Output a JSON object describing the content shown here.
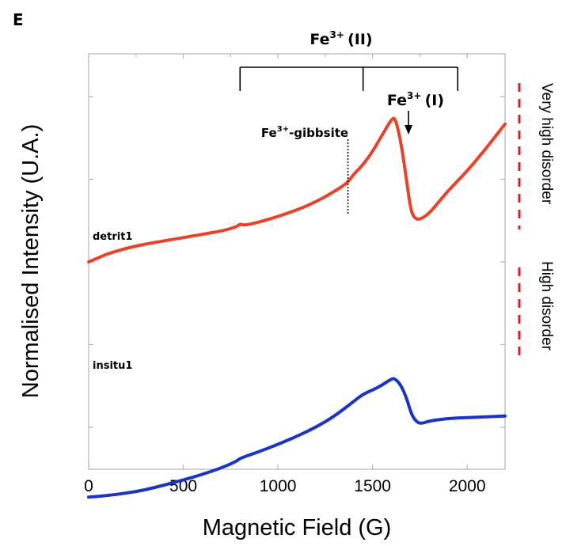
{
  "panel_label": "E",
  "chart_data": {
    "type": "line",
    "xlabel": "Magnetic Field (G)",
    "ylabel": "Normalised Intensity (U.A.)",
    "xlim": [
      0,
      2200
    ],
    "x_ticks": [
      0,
      500,
      1000,
      1500,
      2000
    ],
    "x_tick_labels": [
      "0",
      "500",
      "1000",
      "1500",
      "2000"
    ],
    "y_tick_labels_shown": false,
    "grid": false,
    "series": [
      {
        "name": "detrit1",
        "color": "#e8432a",
        "x": [
          0,
          50,
          100,
          200,
          300,
          400,
          500,
          600,
          700,
          780,
          800,
          820,
          900,
          1000,
          1100,
          1200,
          1300,
          1370,
          1400,
          1450,
          1500,
          1550,
          1600,
          1620,
          1650,
          1680,
          1700,
          1720,
          1750,
          1800,
          1850,
          1900,
          2000,
          2100,
          2200
        ],
        "y": [
          0.0,
          0.025,
          0.05,
          0.085,
          0.11,
          0.13,
          0.15,
          0.17,
          0.19,
          0.215,
          0.235,
          0.225,
          0.245,
          0.28,
          0.32,
          0.37,
          0.435,
          0.49,
          0.54,
          0.6,
          0.68,
          0.78,
          0.88,
          0.89,
          0.74,
          0.5,
          0.33,
          0.27,
          0.26,
          0.3,
          0.37,
          0.44,
          0.56,
          0.7,
          0.85
        ]
      },
      {
        "name": "insitu1",
        "color": "#1c34c4",
        "x": [
          0,
          100,
          200,
          300,
          400,
          500,
          600,
          700,
          780,
          800,
          900,
          1000,
          1100,
          1200,
          1300,
          1400,
          1450,
          1500,
          1550,
          1600,
          1620,
          1650,
          1680,
          1700,
          1720,
          1750,
          1800,
          1900,
          2000,
          2100,
          2200
        ],
        "y": [
          -1.45,
          -1.44,
          -1.425,
          -1.405,
          -1.375,
          -1.345,
          -1.31,
          -1.27,
          -1.23,
          -1.21,
          -1.17,
          -1.125,
          -1.075,
          -1.02,
          -0.95,
          -0.86,
          -0.815,
          -0.79,
          -0.76,
          -0.72,
          -0.72,
          -0.76,
          -0.84,
          -0.92,
          -0.97,
          -1.0,
          -0.98,
          -0.965,
          -0.96,
          -0.955,
          -0.95
        ]
      }
    ],
    "annotations": {
      "fe_ii": {
        "text": "Fe",
        "sup": "3+ ",
        "tail": "(II)",
        "x_positions": [
          800,
          1450,
          1950
        ]
      },
      "fe_i": {
        "text": "Fe",
        "sup": "3+ ",
        "tail": "(I)",
        "arrow_x": 1690
      },
      "gibbsite": {
        "text": "Fe",
        "sup": "3+",
        "tail": "-gibbsite",
        "line_x": 1370
      }
    },
    "side_labels": [
      {
        "text": "Very high disorder",
        "color": "#d22020"
      },
      {
        "text": "High disorder",
        "color": "#d22020"
      }
    ]
  }
}
